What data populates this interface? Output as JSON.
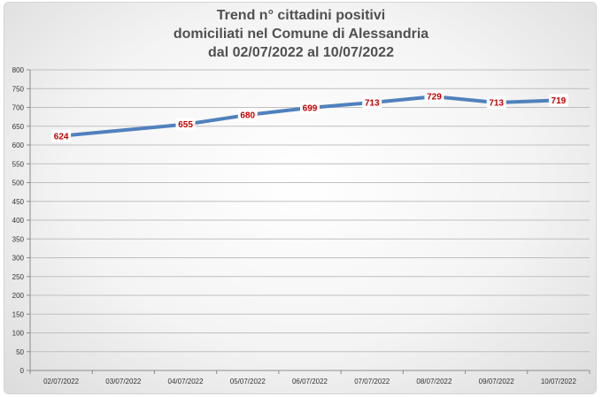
{
  "chart_data": {
    "type": "line",
    "title_lines": [
      "Trend n° cittadini positivi",
      "domiciliati nel Comune di Alessandria",
      "dal 02/07/2022 al 10/07/2022"
    ],
    "categories": [
      "02/07/2022",
      "03/07/2022",
      "04/07/2022",
      "05/07/2022",
      "06/07/2022",
      "07/07/2022",
      "08/07/2022",
      "09/07/2022",
      "10/07/2022"
    ],
    "values": [
      624,
      null,
      655,
      680,
      699,
      713,
      729,
      713,
      719
    ],
    "ylim": [
      0,
      800
    ],
    "yticks": [
      0,
      50,
      100,
      150,
      200,
      250,
      300,
      350,
      400,
      450,
      500,
      550,
      600,
      650,
      700,
      750,
      800
    ],
    "grid": true,
    "line_color": "#4f81bd",
    "label_color": "#c00000"
  }
}
